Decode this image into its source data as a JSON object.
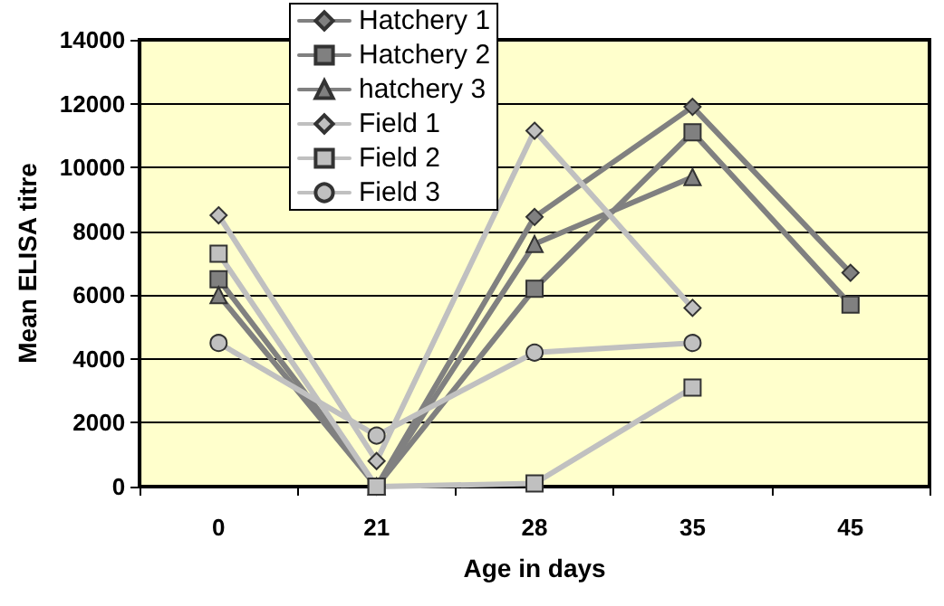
{
  "chart_data": {
    "type": "line",
    "xlabel": "Age in days",
    "ylabel": "Mean ELISA titre",
    "categories": [
      "0",
      "21",
      "28",
      "35",
      "45"
    ],
    "ylim": [
      0,
      14000
    ],
    "yticks": [
      0,
      2000,
      4000,
      6000,
      8000,
      10000,
      12000,
      14000
    ],
    "grid": "y",
    "legend": "top",
    "series": [
      {
        "name": "Hatchery 1",
        "color": "#808080",
        "marker": "diamond",
        "values": [
          null,
          0,
          8450,
          11900,
          6700
        ]
      },
      {
        "name": "Hatchery 2",
        "color": "#808080",
        "marker": "square",
        "values": [
          6500,
          0,
          6200,
          11100,
          5700
        ]
      },
      {
        "name": "hatchery 3",
        "color": "#808080",
        "marker": "triangle",
        "values": [
          6000,
          0,
          7600,
          9700,
          null
        ]
      },
      {
        "name": "Field 1",
        "color": "#c0c0c0",
        "marker": "diamond",
        "values": [
          8500,
          800,
          11150,
          5600,
          null
        ]
      },
      {
        "name": "Field 2",
        "color": "#c0c0c0",
        "marker": "square",
        "values": [
          7300,
          0,
          100,
          3100,
          null
        ]
      },
      {
        "name": "Field 3",
        "color": "#c0c0c0",
        "marker": "circle",
        "values": [
          4500,
          1600,
          4200,
          4500,
          null
        ]
      }
    ]
  }
}
